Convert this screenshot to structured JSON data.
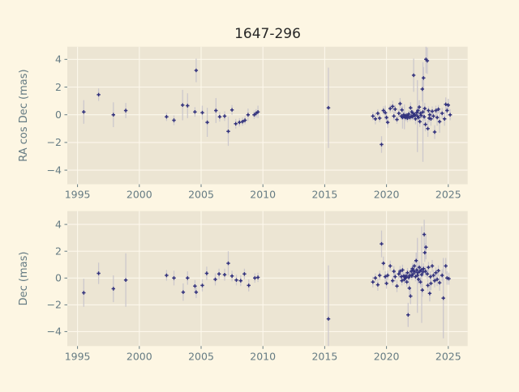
{
  "title": "1647-296",
  "colors": {
    "figure_bg": "#fdf6e3",
    "axes_bg": "#ece5d3",
    "grid": "#fdf8ec",
    "tick_text": "#657b83",
    "title_text": "#262626",
    "marker": "#32327d",
    "error_bar": "#c9c5cc"
  },
  "chart_data": {
    "type": "scatter",
    "marker_style": "plus-with-vertical-error-bars",
    "xlabel": "",
    "subplots": [
      {
        "ylabel": "RA cos Dec (mas)",
        "xlim": [
          1994.17,
          2026.57
        ],
        "ylim": [
          -5.02,
          4.91
        ],
        "xticks": [
          1995,
          2000,
          2005,
          2010,
          2015,
          2020,
          2025
        ],
        "yticks": [
          -4,
          -2,
          0,
          2,
          4
        ],
        "grid": true,
        "points": [
          [
            1995.5,
            0.2,
            0.85
          ],
          [
            1996.7,
            1.45,
            0.45
          ],
          [
            1997.9,
            0.0,
            0.9
          ],
          [
            1998.9,
            0.3,
            0.55
          ],
          [
            2002.2,
            -0.15,
            0.3
          ],
          [
            2002.8,
            -0.4,
            0.35
          ],
          [
            2003.5,
            0.7,
            1.1
          ],
          [
            2003.9,
            0.65,
            0.9
          ],
          [
            2004.5,
            0.2,
            0.35
          ],
          [
            2004.6,
            3.2,
            0.85
          ],
          [
            2005.1,
            0.15,
            0.5
          ],
          [
            2005.5,
            -0.55,
            1.05
          ],
          [
            2006.2,
            0.3,
            0.9
          ],
          [
            2006.5,
            -0.15,
            0.35
          ],
          [
            2006.9,
            -0.1,
            0.35
          ],
          [
            2007.2,
            -1.2,
            1.05
          ],
          [
            2007.5,
            0.35,
            0.35
          ],
          [
            2007.8,
            -0.65,
            0.35
          ],
          [
            2008.1,
            -0.55,
            0.3
          ],
          [
            2008.35,
            -0.5,
            0.3
          ],
          [
            2008.55,
            -0.4,
            0.3
          ],
          [
            2008.8,
            0.0,
            0.45
          ],
          [
            2009.3,
            0.0,
            0.3
          ],
          [
            2009.45,
            0.1,
            0.3
          ],
          [
            2009.6,
            0.2,
            0.45
          ],
          [
            2015.3,
            0.5,
            2.9
          ],
          [
            2018.9,
            -0.1,
            0.3
          ],
          [
            2019.1,
            -0.3,
            0.4
          ],
          [
            2019.3,
            0.1,
            0.3
          ],
          [
            2019.45,
            -0.25,
            0.3
          ],
          [
            2019.6,
            -2.15,
            0.6
          ],
          [
            2019.75,
            0.3,
            0.3
          ],
          [
            2019.9,
            0.15,
            0.5
          ],
          [
            2020.0,
            -0.2,
            0.3
          ],
          [
            2020.1,
            -0.55,
            0.4
          ],
          [
            2020.3,
            0.45,
            0.3
          ],
          [
            2020.5,
            0.6,
            0.4
          ],
          [
            2020.6,
            -0.1,
            0.3
          ],
          [
            2020.7,
            0.4,
            0.3
          ],
          [
            2020.85,
            -0.35,
            0.3
          ],
          [
            2021.0,
            0.1,
            0.3
          ],
          [
            2021.1,
            0.8,
            0.4
          ],
          [
            2021.2,
            -0.1,
            0.25
          ],
          [
            2021.25,
            0.35,
            0.3
          ],
          [
            2021.3,
            -0.2,
            0.8
          ],
          [
            2021.4,
            0.0,
            0.3
          ],
          [
            2021.45,
            -0.15,
            0.9
          ],
          [
            2021.5,
            -0.1,
            0.25
          ],
          [
            2021.55,
            -0.2,
            0.25
          ],
          [
            2021.6,
            -0.05,
            0.25
          ],
          [
            2021.65,
            -0.15,
            0.25
          ],
          [
            2021.7,
            -0.25,
            0.3
          ],
          [
            2021.75,
            -0.1,
            0.25
          ],
          [
            2021.8,
            0.05,
            0.3
          ],
          [
            2021.9,
            -0.2,
            0.25
          ],
          [
            2021.95,
            0.5,
            0.4
          ],
          [
            2022.0,
            -0.1,
            0.25
          ],
          [
            2022.05,
            0.2,
            0.3
          ],
          [
            2022.1,
            -0.15,
            0.25
          ],
          [
            2022.15,
            0.1,
            0.25
          ],
          [
            2022.2,
            2.85,
            1.2
          ],
          [
            2022.25,
            -0.05,
            0.3
          ],
          [
            2022.3,
            0.0,
            0.25
          ],
          [
            2022.35,
            -0.3,
            0.4
          ],
          [
            2022.45,
            0.15,
            0.3
          ],
          [
            2022.5,
            -0.1,
            2.6
          ],
          [
            2022.55,
            0.3,
            0.3
          ],
          [
            2022.6,
            -0.2,
            0.3
          ],
          [
            2022.65,
            0.55,
            0.5
          ],
          [
            2022.7,
            -0.5,
            0.4
          ],
          [
            2022.75,
            0.1,
            0.3
          ],
          [
            2022.8,
            -0.05,
            0.25
          ],
          [
            2022.9,
            1.85,
            0.9
          ],
          [
            2022.95,
            0.2,
            3.6
          ],
          [
            2023.0,
            2.65,
            0.8
          ],
          [
            2023.05,
            -0.15,
            0.3
          ],
          [
            2023.1,
            0.45,
            0.4
          ],
          [
            2023.15,
            -0.7,
            0.5
          ],
          [
            2023.2,
            4.0,
            1.0
          ],
          [
            2023.3,
            3.9,
            0.95
          ],
          [
            2023.35,
            -1.0,
            0.6
          ],
          [
            2023.4,
            0.3,
            0.3
          ],
          [
            2023.45,
            -0.25,
            0.3
          ],
          [
            2023.5,
            0.0,
            0.3
          ],
          [
            2023.6,
            -0.3,
            0.5
          ],
          [
            2023.7,
            0.25,
            0.35
          ],
          [
            2023.8,
            -0.1,
            0.3
          ],
          [
            2023.9,
            -1.25,
            0.5
          ],
          [
            2024.0,
            0.3,
            0.35
          ],
          [
            2024.1,
            -0.2,
            0.6
          ],
          [
            2024.2,
            0.4,
            0.3
          ],
          [
            2024.3,
            -0.5,
            0.8
          ],
          [
            2024.5,
            0.1,
            0.4
          ],
          [
            2024.7,
            -0.3,
            0.5
          ],
          [
            2024.8,
            0.75,
            0.5
          ],
          [
            2024.9,
            0.3,
            0.4
          ],
          [
            2025.0,
            0.7,
            0.45
          ],
          [
            2025.15,
            0.0,
            0.4
          ]
        ]
      },
      {
        "ylabel": "Dec (mas)",
        "xlim": [
          1994.17,
          2026.57
        ],
        "ylim": [
          -5.08,
          5.0
        ],
        "xticks": [
          1995,
          2000,
          2005,
          2010,
          2015,
          2020,
          2025
        ],
        "yticks": [
          -4,
          -2,
          0,
          2,
          4
        ],
        "grid": true,
        "points": [
          [
            1995.5,
            -1.1,
            1.05
          ],
          [
            1996.7,
            0.35,
            0.8
          ],
          [
            1997.9,
            -0.8,
            1.0
          ],
          [
            1998.9,
            -0.15,
            2.0
          ],
          [
            2002.2,
            0.2,
            0.4
          ],
          [
            2002.8,
            0.0,
            0.55
          ],
          [
            2003.55,
            -1.05,
            0.65
          ],
          [
            2003.9,
            0.0,
            0.5
          ],
          [
            2004.5,
            -0.6,
            0.45
          ],
          [
            2004.6,
            -1.05,
            0.45
          ],
          [
            2005.1,
            -0.55,
            0.45
          ],
          [
            2005.45,
            0.35,
            0.5
          ],
          [
            2006.15,
            -0.1,
            0.45
          ],
          [
            2006.45,
            0.3,
            0.4
          ],
          [
            2006.9,
            0.25,
            0.45
          ],
          [
            2007.2,
            1.1,
            0.9
          ],
          [
            2007.5,
            0.15,
            0.4
          ],
          [
            2007.85,
            -0.15,
            0.4
          ],
          [
            2008.2,
            -0.2,
            0.4
          ],
          [
            2008.5,
            0.3,
            0.4
          ],
          [
            2008.85,
            -0.55,
            0.45
          ],
          [
            2009.35,
            0.0,
            0.35
          ],
          [
            2009.6,
            0.05,
            0.35
          ],
          [
            2015.3,
            -3.05,
            4.0
          ],
          [
            2018.9,
            -0.3,
            0.4
          ],
          [
            2019.1,
            0.0,
            0.35
          ],
          [
            2019.3,
            -0.5,
            0.45
          ],
          [
            2019.45,
            0.2,
            0.35
          ],
          [
            2019.6,
            2.55,
            1.0
          ],
          [
            2019.75,
            1.1,
            0.5
          ],
          [
            2019.9,
            0.1,
            0.4
          ],
          [
            2020.0,
            -0.4,
            0.4
          ],
          [
            2020.1,
            0.2,
            0.35
          ],
          [
            2020.3,
            0.9,
            0.4
          ],
          [
            2020.5,
            -0.2,
            0.35
          ],
          [
            2020.6,
            0.5,
            0.4
          ],
          [
            2020.7,
            0.1,
            0.35
          ],
          [
            2020.85,
            -0.6,
            0.45
          ],
          [
            2021.0,
            0.3,
            0.35
          ],
          [
            2021.1,
            0.5,
            0.4
          ],
          [
            2021.2,
            0.1,
            0.3
          ],
          [
            2021.25,
            -0.2,
            0.35
          ],
          [
            2021.3,
            0.6,
            0.4
          ],
          [
            2021.4,
            0.15,
            0.3
          ],
          [
            2021.45,
            -0.1,
            0.35
          ],
          [
            2021.5,
            0.1,
            0.3
          ],
          [
            2021.55,
            0.0,
            0.3
          ],
          [
            2021.6,
            0.15,
            0.3
          ],
          [
            2021.65,
            -0.3,
            0.35
          ],
          [
            2021.7,
            0.4,
            0.35
          ],
          [
            2021.75,
            -2.75,
            0.9
          ],
          [
            2021.8,
            0.05,
            0.3
          ],
          [
            2021.85,
            -0.75,
            0.5
          ],
          [
            2021.9,
            0.2,
            0.3
          ],
          [
            2021.95,
            -1.35,
            0.6
          ],
          [
            2022.0,
            0.5,
            0.35
          ],
          [
            2022.05,
            0.15,
            0.3
          ],
          [
            2022.1,
            0.7,
            0.4
          ],
          [
            2022.15,
            0.3,
            0.3
          ],
          [
            2022.2,
            0.55,
            0.35
          ],
          [
            2022.25,
            0.9,
            0.4
          ],
          [
            2022.3,
            0.45,
            0.3
          ],
          [
            2022.35,
            0.1,
            0.35
          ],
          [
            2022.4,
            1.3,
            0.6
          ],
          [
            2022.45,
            0.6,
            0.35
          ],
          [
            2022.5,
            0.2,
            2.8
          ],
          [
            2022.55,
            0.4,
            0.3
          ],
          [
            2022.6,
            -0.1,
            0.35
          ],
          [
            2022.65,
            0.8,
            0.45
          ],
          [
            2022.7,
            0.5,
            0.35
          ],
          [
            2022.75,
            -0.3,
            0.4
          ],
          [
            2022.8,
            0.6,
            0.35
          ],
          [
            2022.85,
            0.25,
            3.6
          ],
          [
            2022.9,
            -0.9,
            0.5
          ],
          [
            2022.95,
            0.45,
            0.35
          ],
          [
            2023.0,
            0.7,
            0.4
          ],
          [
            2023.05,
            3.25,
            1.1
          ],
          [
            2023.1,
            1.9,
            0.7
          ],
          [
            2023.15,
            0.5,
            0.4
          ],
          [
            2023.2,
            2.3,
            0.9
          ],
          [
            2023.3,
            0.3,
            0.35
          ],
          [
            2023.35,
            -0.55,
            0.45
          ],
          [
            2023.4,
            0.8,
            0.4
          ],
          [
            2023.5,
            -1.15,
            0.6
          ],
          [
            2023.55,
            0.1,
            0.4
          ],
          [
            2023.6,
            -0.4,
            0.5
          ],
          [
            2023.7,
            0.9,
            0.45
          ],
          [
            2023.8,
            0.2,
            0.4
          ],
          [
            2023.9,
            -0.2,
            0.5
          ],
          [
            2024.0,
            0.4,
            0.4
          ],
          [
            2024.1,
            -0.1,
            0.5
          ],
          [
            2024.2,
            0.55,
            0.4
          ],
          [
            2024.3,
            -0.35,
            0.6
          ],
          [
            2024.5,
            0.2,
            0.45
          ],
          [
            2024.6,
            -1.5,
            3.0
          ],
          [
            2024.8,
            0.9,
            0.6
          ],
          [
            2024.9,
            0.0,
            0.5
          ],
          [
            2025.05,
            -0.05,
            0.45
          ]
        ]
      }
    ]
  }
}
